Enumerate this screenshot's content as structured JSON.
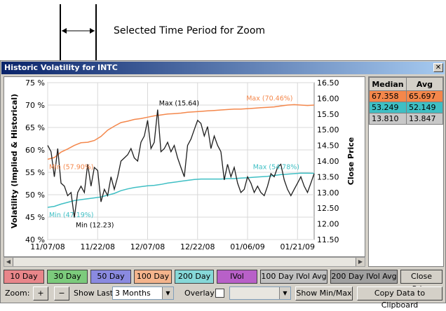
{
  "annotation": {
    "text": "Selected Time Period for Zoom"
  },
  "window": {
    "title": "Historic Volatility for INTC",
    "close_glyph": "✕"
  },
  "chart_data": {
    "type": "line",
    "ylabel": "Volatility (Implied & Historical)",
    "y2label": "Close Price",
    "ylim": [
      40,
      75
    ],
    "y_ticks": [
      "75 %",
      "70 %",
      "65 %",
      "60 %",
      "55 %",
      "50 %",
      "45 %",
      "40 %"
    ],
    "y2lim": [
      11.5,
      16.5
    ],
    "y2_ticks": [
      "16.50",
      "16.00",
      "15.50",
      "15.00",
      "14.50",
      "14.00",
      "13.50",
      "13.00",
      "12.50",
      "12.00",
      "11.50"
    ],
    "x_ticks": [
      "11/07/08",
      "11/22/08",
      "12/07/08",
      "12/22/08",
      "01/06/09",
      "01/21/09"
    ],
    "grid": true,
    "series": [
      {
        "color": "#f4874b",
        "axis": "left",
        "x": [
          0,
          2,
          4,
          6,
          8,
          10,
          12,
          14,
          16,
          18,
          20,
          22,
          24,
          26,
          28,
          30,
          32,
          34,
          36,
          38,
          40,
          42,
          44,
          46,
          48,
          50,
          52,
          54,
          56,
          58,
          60,
          62,
          64,
          66,
          68,
          70,
          72,
          74,
          76,
          78,
          80
        ],
        "values": [
          57.9,
          58.3,
          59.5,
          60.2,
          61.0,
          61.6,
          61.7,
          62.1,
          63.0,
          64.4,
          65.3,
          66.1,
          66.4,
          66.8,
          67.0,
          67.3,
          67.6,
          67.8,
          68.0,
          68.1,
          68.2,
          68.4,
          68.5,
          68.6,
          68.7,
          68.8,
          68.9,
          69.0,
          69.1,
          69.1,
          69.2,
          69.3,
          69.4,
          69.5,
          69.6,
          69.8,
          70.0,
          70.1,
          70.0,
          69.9,
          70.0
        ]
      },
      {
        "color": "#3fbfc4",
        "axis": "left",
        "x": [
          0,
          2,
          4,
          6,
          8,
          10,
          12,
          14,
          16,
          18,
          20,
          22,
          24,
          26,
          28,
          30,
          32,
          34,
          36,
          38,
          40,
          42,
          44,
          46,
          48,
          50,
          52,
          54,
          56,
          58,
          60,
          62,
          64,
          66,
          68,
          70,
          72,
          74,
          76,
          78,
          80
        ],
        "values": [
          47.19,
          47.4,
          47.9,
          48.3,
          48.7,
          48.9,
          49.1,
          49.3,
          49.5,
          49.9,
          50.3,
          50.9,
          51.3,
          51.6,
          51.8,
          52.0,
          52.1,
          52.3,
          52.6,
          52.8,
          53.0,
          53.2,
          53.4,
          53.5,
          53.5,
          53.5,
          53.5,
          53.6,
          53.6,
          53.7,
          53.8,
          53.9,
          54.0,
          54.1,
          54.3,
          54.5,
          54.6,
          54.7,
          54.8,
          54.8,
          54.76
        ]
      },
      {
        "color": "#1e1e1e",
        "axis": "right",
        "x": [
          0,
          1,
          2,
          3,
          4,
          5,
          6,
          7,
          8,
          9,
          10,
          11,
          12,
          13,
          14,
          15,
          16,
          17,
          18,
          19,
          20,
          21,
          22,
          23,
          24,
          25,
          26,
          27,
          28,
          29,
          30,
          31,
          32,
          33,
          34,
          35,
          36,
          37,
          38,
          39,
          40,
          41,
          42,
          43,
          44,
          45,
          46,
          47,
          48,
          49,
          50,
          51,
          52,
          53,
          54,
          55,
          56,
          57,
          58,
          59,
          60,
          61,
          62,
          63,
          64,
          65,
          66,
          67,
          68,
          69,
          70,
          71,
          72,
          73,
          74,
          75,
          76,
          77,
          78,
          79,
          80
        ],
        "values": [
          14.5,
          14.3,
          13.5,
          14.4,
          13.3,
          13.2,
          12.9,
          13.0,
          12.2,
          13.0,
          13.2,
          13.0,
          13.9,
          13.2,
          13.8,
          13.7,
          12.7,
          13.1,
          12.9,
          13.5,
          13.1,
          13.5,
          14.0,
          14.1,
          14.2,
          14.4,
          14.1,
          14.0,
          14.6,
          14.8,
          15.3,
          14.4,
          14.6,
          15.64,
          14.3,
          14.4,
          14.6,
          14.3,
          14.5,
          14.1,
          13.8,
          13.5,
          14.5,
          14.7,
          15.0,
          15.3,
          15.2,
          14.8,
          15.1,
          14.4,
          14.8,
          14.5,
          14.3,
          13.4,
          13.9,
          13.5,
          13.8,
          13.3,
          13.0,
          13.1,
          13.5,
          13.3,
          13.0,
          13.2,
          13.0,
          12.9,
          13.2,
          13.6,
          13.5,
          13.8,
          13.9,
          13.4,
          13.1,
          12.9,
          13.1,
          13.3,
          13.5,
          13.2,
          13.0,
          13.3,
          13.6
        ]
      }
    ],
    "annotations": [
      {
        "text": "Max (70.46%)",
        "series": 0
      },
      {
        "text": "Min (57.90%)",
        "series": 0
      },
      {
        "text": "Max (54.78%)",
        "series": 1
      },
      {
        "text": "Min (47.19%)",
        "series": 1
      },
      {
        "text": "Max (15.64)",
        "series": 2
      },
      {
        "text": "Min (12.23)",
        "series": 2
      }
    ]
  },
  "stats": {
    "headers": [
      "Median",
      "Avg"
    ],
    "rows": [
      {
        "median": "67.358",
        "avg": "65.697",
        "color": "#f4874b"
      },
      {
        "median": "53.249",
        "avg": "52.149",
        "color": "#3fbfc4"
      },
      {
        "median": "13.810",
        "avg": "13.847",
        "color": "#c0c0c0"
      }
    ]
  },
  "buttons": [
    {
      "label": "10 Day",
      "color": "#e8868a"
    },
    {
      "label": "30 Day",
      "color": "#7ccb7c"
    },
    {
      "label": "50 Day",
      "color": "#8a8ae0"
    },
    {
      "label": "100 Day",
      "color": "#f4b48c"
    },
    {
      "label": "200 Day",
      "color": "#86d8d8"
    },
    {
      "label": "IVol",
      "color": "#b860c8"
    },
    {
      "label": "100 Day IVol Avg",
      "color": "#c0c0c0"
    },
    {
      "label": "200 Day IVol Avg",
      "color": "#a0a0a0"
    },
    {
      "label": "Close Price",
      "color": "#d4d0c8"
    }
  ],
  "controls": {
    "zoom_label": "Zoom:",
    "zoom_in": "+",
    "zoom_out": "−",
    "show_last_label": "Show Last",
    "show_last_value": "3 Months",
    "overlay_label": "Overlay",
    "overlay_value": "",
    "show_minmax": "Show Min/Max",
    "copy": "Copy Data to Clipboard"
  }
}
